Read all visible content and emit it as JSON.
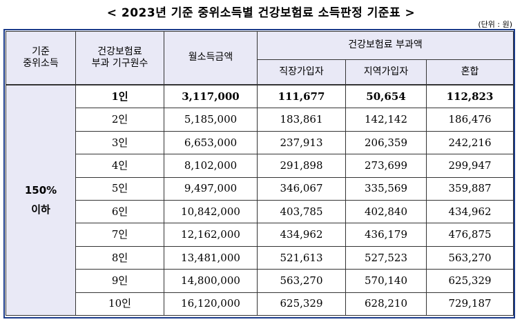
{
  "title": "< 2023년 기준 중위소득별 건강보험료 소득판정 기준표 >",
  "unit": "(단위 : 원)",
  "table": {
    "headers": {
      "col1": [
        "기준",
        "중위소득"
      ],
      "col2": [
        "건강보험료",
        "부과 기구원수"
      ],
      "col3": "월소득금액",
      "group": "건강보험료 부과액",
      "sub": [
        "직장가입자",
        "지역가입자",
        "혼합"
      ]
    },
    "group_label": [
      "150%",
      "이하"
    ],
    "rows": [
      {
        "size": "1인",
        "income": "3,117,000",
        "workplace": "111,677",
        "regional": "50,654",
        "mixed": "112,823"
      },
      {
        "size": "2인",
        "income": "5,185,000",
        "workplace": "183,861",
        "regional": "142,142",
        "mixed": "186,476"
      },
      {
        "size": "3인",
        "income": "6,653,000",
        "workplace": "237,913",
        "regional": "206,359",
        "mixed": "242,216"
      },
      {
        "size": "4인",
        "income": "8,102,000",
        "workplace": "291,898",
        "regional": "273,699",
        "mixed": "299,947"
      },
      {
        "size": "5인",
        "income": "9,497,000",
        "workplace": "346,067",
        "regional": "335,569",
        "mixed": "359,887"
      },
      {
        "size": "6인",
        "income": "10,842,000",
        "workplace": "403,785",
        "regional": "402,840",
        "mixed": "434,962"
      },
      {
        "size": "7인",
        "income": "12,162,000",
        "workplace": "434,962",
        "regional": "436,179",
        "mixed": "476,875"
      },
      {
        "size": "8인",
        "income": "13,481,000",
        "workplace": "521,613",
        "regional": "527,523",
        "mixed": "563,270"
      },
      {
        "size": "9인",
        "income": "14,800,000",
        "workplace": "563,270",
        "regional": "570,140",
        "mixed": "625,329"
      },
      {
        "size": "10인",
        "income": "16,120,000",
        "workplace": "625,329",
        "regional": "628,210",
        "mixed": "729,187"
      }
    ]
  }
}
